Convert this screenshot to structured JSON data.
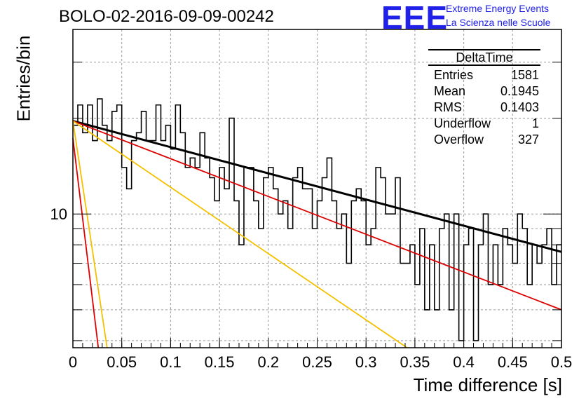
{
  "header": {
    "title": "BOLO-02-2016-09-09-00242",
    "logo_text": "EEE",
    "brand_line1": "Extreme Energy Events",
    "brand_line2": "La Scienza nelle Scuole",
    "brand_color": "#1f20e8"
  },
  "stats_box": {
    "title": "DeltaTime",
    "rows": [
      {
        "label": "Entries",
        "value": "1581"
      },
      {
        "label": "Mean",
        "value": "0.1945"
      },
      {
        "label": "RMS",
        "value": "0.1403"
      },
      {
        "label": "Underflow",
        "value": "1"
      },
      {
        "label": "Overflow",
        "value": "327"
      }
    ]
  },
  "chart_data": {
    "type": "line",
    "title": "BOLO-02-2016-09-09-00242",
    "xlabel": "Time difference [s]",
    "ylabel": "Entries/bin",
    "xlim": [
      0,
      0.5
    ],
    "ylim": [
      3.8,
      38
    ],
    "y_scale": "log",
    "grid": true,
    "x_ticks": [
      "0",
      "0.05",
      "0.1",
      "0.15",
      "0.2",
      "0.25",
      "0.3",
      "0.35",
      "0.4",
      "0.45",
      "0.5"
    ],
    "y_ticks": [
      "10"
    ],
    "histogram": {
      "name": "DeltaTime",
      "color": "#000000",
      "bin_width": 0.005,
      "values": [
        19,
        22,
        18,
        22,
        17,
        23,
        19,
        17,
        21,
        22,
        14,
        12,
        17,
        18,
        21,
        17,
        17,
        22,
        17,
        19,
        16,
        22,
        18,
        14,
        15,
        14,
        18,
        15,
        13,
        11,
        14,
        12,
        20,
        11,
        8,
        14,
        14,
        11,
        9,
        13,
        14,
        12,
        10,
        11,
        9,
        13,
        14,
        12,
        12,
        9,
        11,
        13,
        15,
        11,
        9,
        10,
        7,
        11,
        12,
        11,
        8,
        9,
        14,
        13,
        10,
        10,
        13,
        7,
        7,
        8,
        6,
        9,
        5,
        8,
        5,
        9,
        10,
        5,
        10,
        4,
        8,
        9,
        4,
        8,
        10,
        6,
        8,
        6,
        9,
        8,
        7,
        10,
        9,
        6,
        8,
        7,
        8,
        9,
        6,
        8
      ]
    },
    "fits": [
      {
        "color": "#000000",
        "points": [
          [
            0,
            19.6
          ],
          [
            0.5,
            7.6
          ]
        ]
      },
      {
        "color": "#dd0000",
        "points": [
          [
            0,
            19.6
          ],
          [
            0.5,
            5.0
          ]
        ]
      },
      {
        "color": "#f5c000",
        "points": [
          [
            0,
            19.6
          ],
          [
            0.342,
            3.8
          ]
        ]
      },
      {
        "color": "#dd0000",
        "points": [
          [
            0,
            17.3
          ],
          [
            0.026,
            3.8
          ]
        ]
      },
      {
        "color": "#f5c000",
        "points": [
          [
            0,
            19.6
          ],
          [
            0.035,
            3.8
          ]
        ]
      }
    ]
  }
}
